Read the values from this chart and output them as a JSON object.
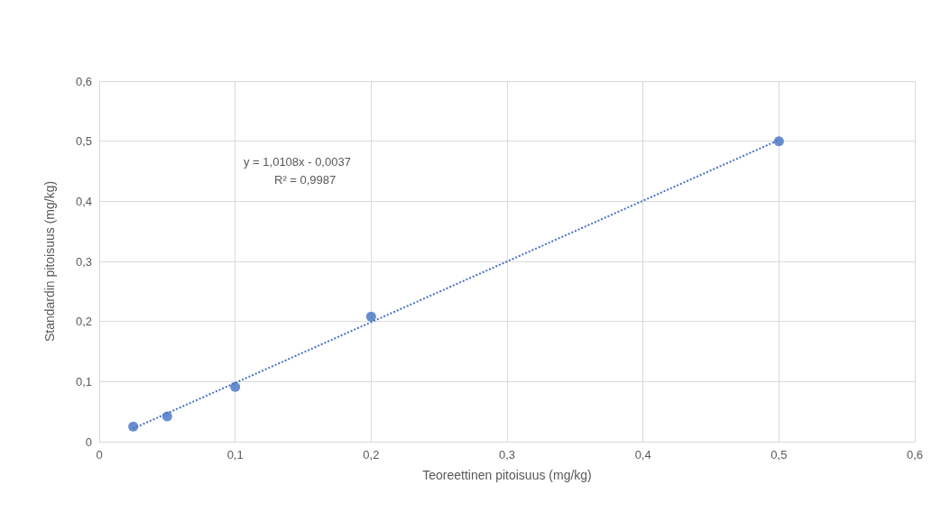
{
  "chart_data": {
    "type": "scatter",
    "xlabel": "Teoreettinen pitoisuus (mg/kg)",
    "ylabel": "Standardin pitoisuus (mg/kg)",
    "x": [
      0.025,
      0.05,
      0.1,
      0.2,
      0.5
    ],
    "series": [
      {
        "color": "#4472c4",
        "values": [
          0.025,
          0.042,
          0.091,
          0.208,
          0.5
        ],
        "marker": "circle"
      },
      {
        "type": "line",
        "color": "#4472c4",
        "x": [
          0.025,
          0.5
        ],
        "values": [
          0.022,
          0.502
        ],
        "marker": "none",
        "line_style": "dotted"
      }
    ],
    "annotations": [
      "y = 1,0108x - 0,0037",
      "R² = 0,9987"
    ],
    "xlim": [
      0,
      0.6
    ],
    "ylim": [
      0,
      0.6
    ],
    "xticks": [
      0,
      {
        "value": 0.1,
        "label": "0,1"
      },
      {
        "value": 0.2,
        "label": "0,2"
      },
      {
        "value": 0.3,
        "label": "0,3"
      },
      {
        "value": 0.4,
        "label": "0,4"
      },
      {
        "value": 0.5,
        "label": "0,5"
      },
      {
        "value": 0.6,
        "label": "0,6"
      }
    ],
    "yticks": [
      0,
      {
        "value": 0.1,
        "label": "0,1"
      },
      {
        "value": 0.2,
        "label": "0,2"
      },
      {
        "value": 0.3,
        "label": "0,3"
      },
      {
        "value": 0.4,
        "label": "0,4"
      },
      {
        "value": 0.5,
        "label": "0,5"
      },
      {
        "value": 0.6,
        "label": "0,6"
      }
    ],
    "grid": true
  }
}
